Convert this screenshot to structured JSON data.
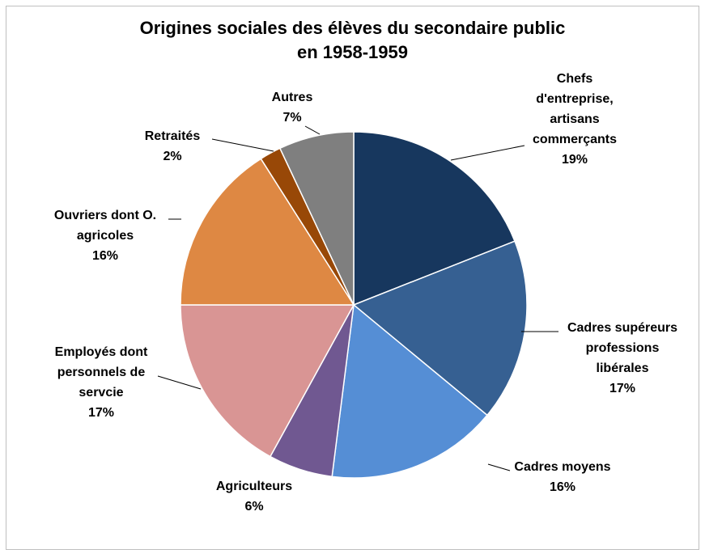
{
  "chart_data": {
    "type": "pie",
    "title_line1": "Origines sociales des élèves du secondaire public",
    "title_line2": "en 1958-1959",
    "slices": [
      {
        "label": [
          "Chefs",
          "d'entreprise,",
          "artisans",
          "commerçants"
        ],
        "pct": "19%",
        "value": 19,
        "color": "#17375e"
      },
      {
        "label": [
          "Cadres supéreurs",
          "professions",
          "libérales"
        ],
        "pct": "17%",
        "value": 17,
        "color": "#366092"
      },
      {
        "label": [
          "Cadres moyens"
        ],
        "pct": "16%",
        "value": 16,
        "color": "#558ed5"
      },
      {
        "label": [
          "Agriculteurs"
        ],
        "pct": "6%",
        "value": 6,
        "color": "#705891"
      },
      {
        "label": [
          "Employés dont",
          "personnels de",
          "servcie"
        ],
        "pct": "17%",
        "value": 17,
        "color": "#d99594"
      },
      {
        "label": [
          "Ouvriers dont O.",
          "agricoles"
        ],
        "pct": "16%",
        "value": 16,
        "color": "#de8843"
      },
      {
        "label": [
          "Retraités"
        ],
        "pct": "2%",
        "value": 2,
        "color": "#984807"
      },
      {
        "label": [
          "Autres"
        ],
        "pct": "7%",
        "value": 7,
        "color": "#7f7f7f"
      }
    ]
  }
}
